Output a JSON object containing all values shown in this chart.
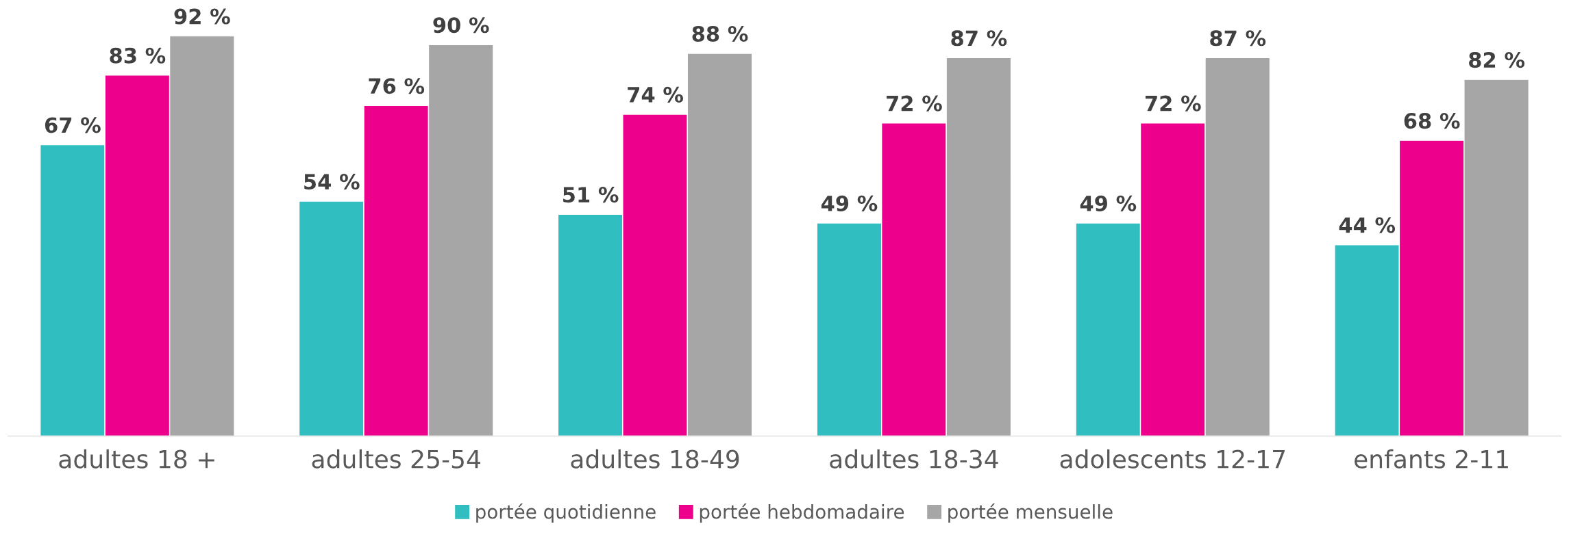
{
  "chart_data": {
    "type": "bar",
    "categories": [
      "adultes 18 +",
      "adultes 25-54",
      "adultes 18-49",
      "adultes 18-34",
      "adolescents 12-17",
      "enfants 2-11"
    ],
    "series": [
      {
        "name": "portée quotidienne",
        "color": "#31bec0",
        "values": [
          67,
          54,
          51,
          49,
          49,
          44
        ],
        "value_labels": [
          "67 %",
          "54 %",
          "51 %",
          "49 %",
          "49 %",
          "44 %"
        ]
      },
      {
        "name": "portée hebdomadaire",
        "color": "#ec008c",
        "values": [
          83,
          76,
          74,
          72,
          72,
          68
        ],
        "value_labels": [
          "83 %",
          "76 %",
          "74 %",
          "72 %",
          "72 %",
          "68 %"
        ]
      },
      {
        "name": "portée mensuelle",
        "color": "#a6a6a6",
        "values": [
          92,
          90,
          88,
          87,
          87,
          82
        ],
        "value_labels": [
          "92 %",
          "90 %",
          "88 %",
          "87 %",
          "87 %",
          "82 %"
        ]
      }
    ],
    "legend": "bottom",
    "tick_labels": "x"
  }
}
